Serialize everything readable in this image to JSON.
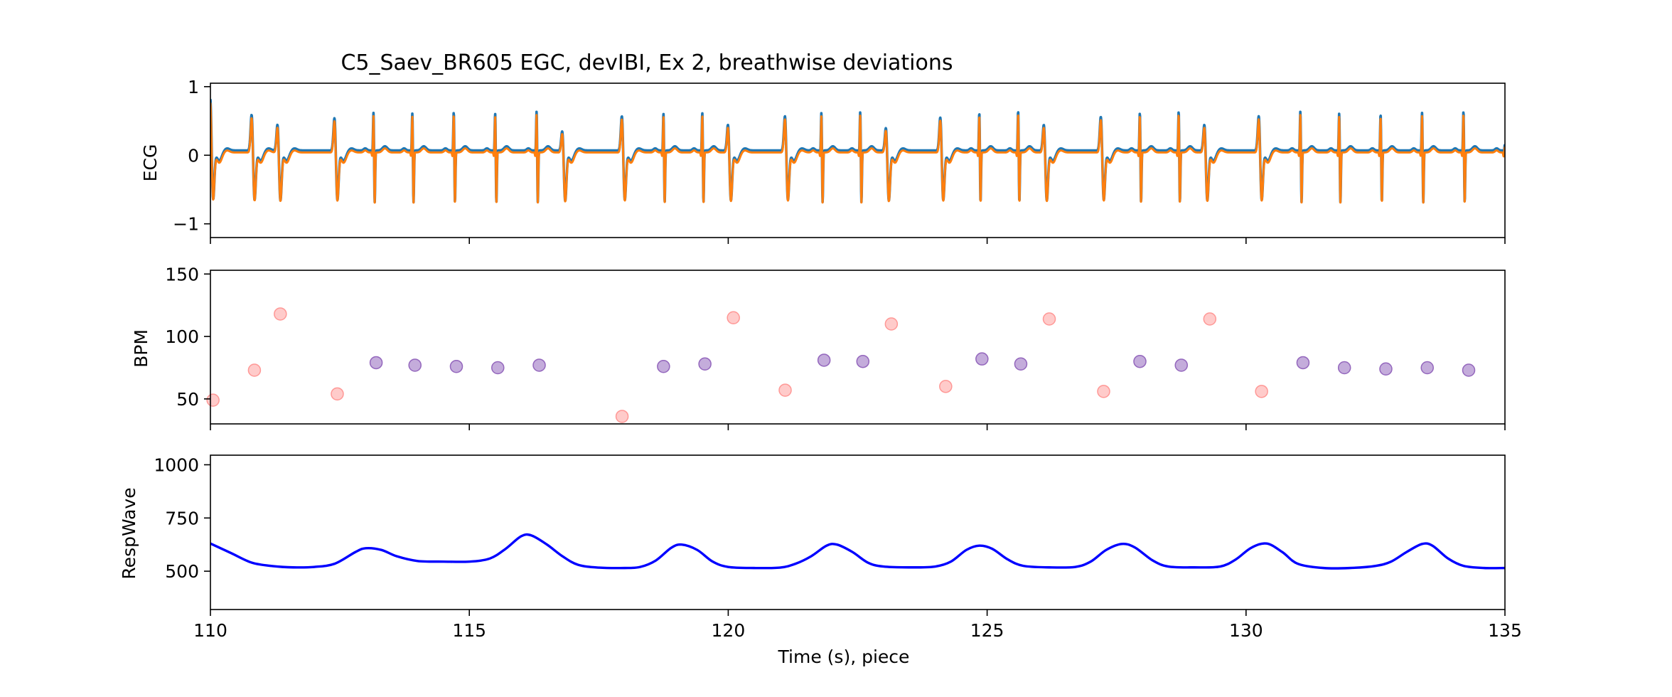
{
  "title": "C5_Saev_BR605 EGC, devIBI, Ex 2, breathwise deviations",
  "xlabel": "Time (s), piece",
  "colors": {
    "ecg_raw": "#1f77b4",
    "ecg_filtered": "#ff7f0e",
    "bpm_normal": "#9467bd",
    "bpm_deviant": "#ff9896",
    "resp": "#0000ff"
  },
  "chart_data": [
    {
      "type": "line",
      "panel": "ecg",
      "ylabel": "ECG",
      "xlim": [
        110,
        135
      ],
      "ylim": [
        -1.2,
        1.05
      ],
      "yticks": [
        -1,
        0,
        1
      ],
      "yticklabels": [
        "−1",
        "0",
        "1"
      ],
      "xticks": [
        110,
        115,
        120,
        125,
        130,
        135
      ],
      "series": [
        {
          "color": "#1f77b4",
          "offset": 0.03,
          "peak_scale": 1.0
        },
        {
          "color": "#ff7f0e",
          "offset": 0.0,
          "peak_scale": 0.97
        }
      ],
      "beats": [
        {
          "t": 110.0,
          "amp": 0.85,
          "deviant": true
        },
        {
          "t": 110.8,
          "amp": 0.6,
          "deviant": true
        },
        {
          "t": 111.3,
          "amp": 0.45,
          "deviant": true
        },
        {
          "t": 112.4,
          "amp": 0.55,
          "deviant": true
        },
        {
          "t": 113.15,
          "amp": 0.58,
          "deviant": false
        },
        {
          "t": 113.9,
          "amp": 0.57,
          "deviant": false
        },
        {
          "t": 114.7,
          "amp": 0.59,
          "deviant": false
        },
        {
          "t": 115.5,
          "amp": 0.57,
          "deviant": false
        },
        {
          "t": 116.3,
          "amp": 0.6,
          "deviant": false
        },
        {
          "t": 116.8,
          "amp": 0.35,
          "deviant": true
        },
        {
          "t": 117.95,
          "amp": 0.58,
          "deviant": true
        },
        {
          "t": 118.75,
          "amp": 0.57,
          "deviant": false
        },
        {
          "t": 119.5,
          "amp": 0.58,
          "deviant": false
        },
        {
          "t": 120.0,
          "amp": 0.45,
          "deviant": true
        },
        {
          "t": 121.1,
          "amp": 0.58,
          "deviant": true
        },
        {
          "t": 121.8,
          "amp": 0.58,
          "deviant": false
        },
        {
          "t": 122.55,
          "amp": 0.59,
          "deviant": false
        },
        {
          "t": 123.05,
          "amp": 0.4,
          "deviant": true
        },
        {
          "t": 124.1,
          "amp": 0.56,
          "deviant": true
        },
        {
          "t": 124.85,
          "amp": 0.58,
          "deviant": false
        },
        {
          "t": 125.6,
          "amp": 0.61,
          "deviant": false
        },
        {
          "t": 126.1,
          "amp": 0.45,
          "deviant": true
        },
        {
          "t": 127.2,
          "amp": 0.57,
          "deviant": true
        },
        {
          "t": 127.95,
          "amp": 0.58,
          "deviant": false
        },
        {
          "t": 128.7,
          "amp": 0.6,
          "deviant": false
        },
        {
          "t": 129.2,
          "amp": 0.45,
          "deviant": true
        },
        {
          "t": 130.25,
          "amp": 0.58,
          "deviant": true
        },
        {
          "t": 131.05,
          "amp": 0.6,
          "deviant": false
        },
        {
          "t": 131.8,
          "amp": 0.57,
          "deviant": false
        },
        {
          "t": 132.6,
          "amp": 0.56,
          "deviant": false
        },
        {
          "t": 133.4,
          "amp": 0.58,
          "deviant": false
        },
        {
          "t": 134.2,
          "amp": 0.6,
          "deviant": false
        },
        {
          "t": 135.0,
          "amp": 0.1,
          "deviant": false
        }
      ]
    },
    {
      "type": "scatter",
      "panel": "bpm",
      "ylabel": "BPM",
      "xlim": [
        110,
        135
      ],
      "ylim": [
        30,
        153
      ],
      "yticks": [
        50,
        100,
        150
      ],
      "yticklabels": [
        "50",
        "100",
        "150"
      ],
      "xticks": [
        110,
        115,
        120,
        125,
        130,
        135
      ],
      "series": [
        {
          "color": "#9467bd",
          "points": [
            [
              113.2,
              79
            ],
            [
              113.95,
              77
            ],
            [
              114.75,
              76
            ],
            [
              115.55,
              75
            ],
            [
              116.35,
              77
            ],
            [
              118.75,
              76
            ],
            [
              119.55,
              78
            ],
            [
              121.85,
              81
            ],
            [
              122.6,
              80
            ],
            [
              124.9,
              82
            ],
            [
              125.65,
              78
            ],
            [
              127.95,
              80
            ],
            [
              128.75,
              77
            ],
            [
              131.1,
              79
            ],
            [
              131.9,
              75
            ],
            [
              132.7,
              74
            ],
            [
              133.5,
              75
            ],
            [
              134.3,
              73
            ]
          ]
        },
        {
          "color": "#ff9896",
          "points": [
            [
              110.05,
              49
            ],
            [
              110.85,
              73
            ],
            [
              111.35,
              118
            ],
            [
              112.45,
              54
            ],
            [
              117.95,
              36
            ],
            [
              120.1,
              115
            ],
            [
              121.1,
              57
            ],
            [
              123.15,
              110
            ],
            [
              124.2,
              60
            ],
            [
              126.2,
              114
            ],
            [
              127.25,
              56
            ],
            [
              129.3,
              114
            ],
            [
              130.3,
              56
            ]
          ]
        }
      ]
    },
    {
      "type": "line",
      "panel": "resp",
      "ylabel": "RespWave",
      "xlim": [
        110,
        135
      ],
      "ylim": [
        320,
        1045
      ],
      "yticks": [
        500,
        750,
        1000
      ],
      "yticklabels": [
        "500",
        "750",
        "1000"
      ],
      "xticks": [
        110,
        115,
        120,
        125,
        130,
        135
      ],
      "xticklabels": [
        "110",
        "115",
        "120",
        "125",
        "130",
        "135"
      ],
      "series": [
        {
          "color": "#0000ff",
          "points": [
            [
              110.0,
              630
            ],
            [
              110.4,
              585
            ],
            [
              110.8,
              540
            ],
            [
              111.2,
              524
            ],
            [
              111.6,
              518
            ],
            [
              112.0,
              520
            ],
            [
              112.4,
              535
            ],
            [
              112.8,
              590
            ],
            [
              113.0,
              608
            ],
            [
              113.3,
              600
            ],
            [
              113.6,
              570
            ],
            [
              114.0,
              548
            ],
            [
              114.5,
              545
            ],
            [
              115.0,
              545
            ],
            [
              115.4,
              560
            ],
            [
              115.7,
              605
            ],
            [
              116.0,
              664
            ],
            [
              116.2,
              668
            ],
            [
              116.5,
              625
            ],
            [
              116.8,
              570
            ],
            [
              117.1,
              530
            ],
            [
              117.5,
              517
            ],
            [
              118.0,
              515
            ],
            [
              118.3,
              520
            ],
            [
              118.6,
              550
            ],
            [
              118.9,
              610
            ],
            [
              119.1,
              625
            ],
            [
              119.4,
              600
            ],
            [
              119.7,
              545
            ],
            [
              120.0,
              520
            ],
            [
              120.5,
              515
            ],
            [
              121.0,
              517
            ],
            [
              121.3,
              535
            ],
            [
              121.6,
              570
            ],
            [
              121.9,
              620
            ],
            [
              122.1,
              625
            ],
            [
              122.4,
              590
            ],
            [
              122.7,
              540
            ],
            [
              123.0,
              522
            ],
            [
              123.6,
              518
            ],
            [
              124.0,
              522
            ],
            [
              124.3,
              545
            ],
            [
              124.6,
              600
            ],
            [
              124.85,
              620
            ],
            [
              125.1,
              605
            ],
            [
              125.4,
              555
            ],
            [
              125.7,
              525
            ],
            [
              126.2,
              518
            ],
            [
              126.7,
              520
            ],
            [
              127.0,
              545
            ],
            [
              127.3,
              600
            ],
            [
              127.6,
              628
            ],
            [
              127.85,
              612
            ],
            [
              128.2,
              550
            ],
            [
              128.5,
              522
            ],
            [
              129.0,
              518
            ],
            [
              129.5,
              522
            ],
            [
              129.8,
              555
            ],
            [
              130.1,
              610
            ],
            [
              130.4,
              630
            ],
            [
              130.7,
              590
            ],
            [
              131.0,
              535
            ],
            [
              131.5,
              515
            ],
            [
              132.0,
              515
            ],
            [
              132.5,
              525
            ],
            [
              132.8,
              545
            ],
            [
              133.1,
              590
            ],
            [
              133.4,
              628
            ],
            [
              133.6,
              620
            ],
            [
              133.9,
              560
            ],
            [
              134.2,
              525
            ],
            [
              134.6,
              515
            ],
            [
              135.0,
              515
            ]
          ]
        }
      ]
    }
  ]
}
